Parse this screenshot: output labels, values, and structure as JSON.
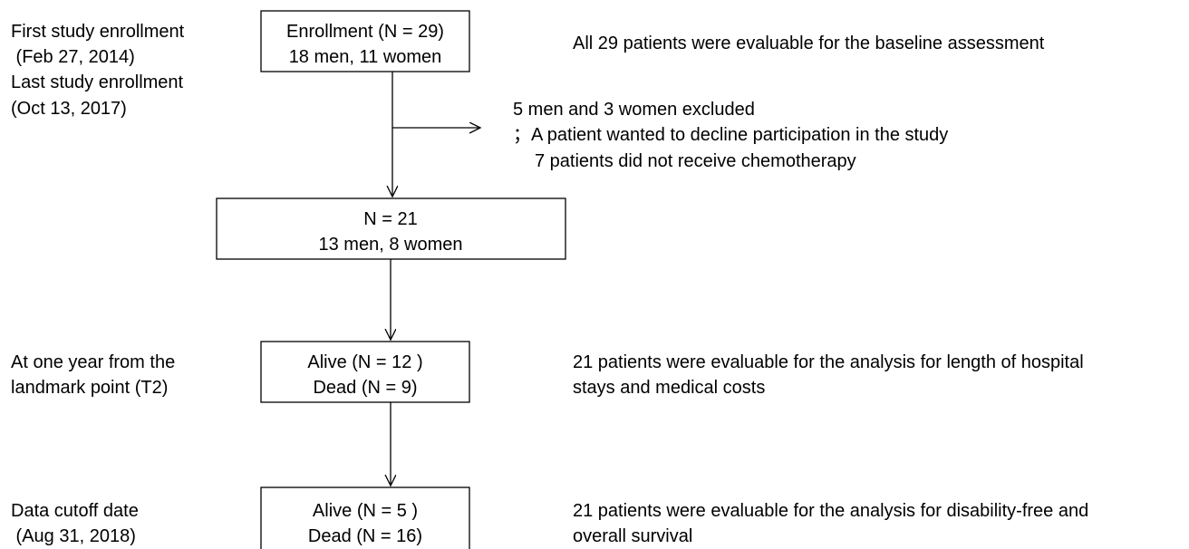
{
  "left_labels": [
    {
      "lines": [
        "First study enrollment",
        " (Feb 27, 2014)",
        "Last study enrollment",
        "(Oct 13, 2017)"
      ]
    },
    {
      "lines": [
        "At one year from the",
        "landmark point (T2)"
      ]
    },
    {
      "lines": [
        "Data cutoff date",
        " (Aug 31, 2018)"
      ]
    }
  ],
  "nodes": [
    {
      "lines": [
        "Enrollment (N = 29)",
        "18 men, 11 women"
      ]
    },
    {
      "lines": [
        "N = 21",
        "13 men, 8 women"
      ]
    },
    {
      "lines": [
        "Alive (N = 12 )",
        "Dead (N = 9)"
      ]
    },
    {
      "lines": [
        "Alive (N = 5 )",
        "Dead (N = 16)"
      ]
    }
  ],
  "exclusion": {
    "lines": [
      "5 men and 3 women excluded",
      "；A patient wanted to decline participation in the study",
      "7 patients did not receive chemotherapy"
    ]
  },
  "notes": [
    {
      "lines": [
        "All 29 patients were evaluable for the baseline assessment"
      ]
    },
    {
      "lines": [
        "21 patients were evaluable for the analysis for length of hospital",
        "stays and medical costs"
      ]
    },
    {
      "lines": [
        "21 patients were evaluable for the analysis for disability-free and",
        "overall survival"
      ]
    }
  ]
}
